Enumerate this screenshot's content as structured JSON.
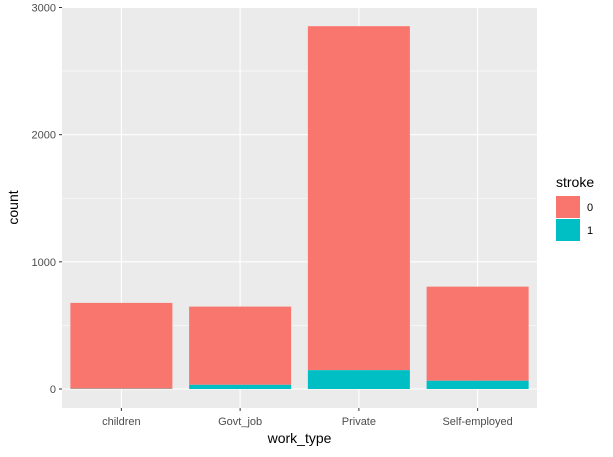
{
  "chart_data": {
    "type": "bar",
    "stacked": true,
    "xlabel": "work_type",
    "ylabel": "count",
    "categories": [
      "children",
      "Govt_job",
      "Private",
      "Self-employed"
    ],
    "ylim": [
      0,
      3000
    ],
    "yticks": [
      0,
      1000,
      2000,
      3000
    ],
    "grid": true,
    "legend": {
      "title": "stroke",
      "position": "right"
    },
    "series": [
      {
        "name": "0",
        "color": "#F8766D",
        "values": [
          675,
          615,
          2705,
          740
        ]
      },
      {
        "name": "1",
        "color": "#00BFC4",
        "values": [
          2,
          33,
          148,
          65
        ]
      }
    ],
    "colors": {
      "panel_background": "#EBEBEB",
      "grid_major": "#FFFFFF",
      "grid_minor": "#F5F5F5"
    }
  }
}
